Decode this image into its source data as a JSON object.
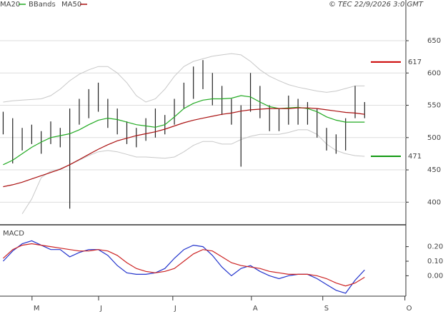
{
  "chart_data": {
    "type": "ohlc",
    "source": "© TEC 22/9/2026 3:0 GMT",
    "x": [
      1,
      4,
      7,
      10,
      13,
      16,
      19,
      22,
      25,
      28,
      31,
      34,
      37,
      40,
      43,
      46,
      49,
      52,
      55,
      58,
      61,
      64,
      67,
      70,
      73,
      76,
      79,
      82,
      85,
      88,
      91,
      94,
      97,
      100,
      103,
      106,
      109,
      112,
      115
    ],
    "high": [
      540,
      530,
      515,
      520,
      510,
      525,
      515,
      545,
      560,
      575,
      585,
      560,
      545,
      525,
      515,
      530,
      545,
      535,
      560,
      585,
      610,
      620,
      600,
      580,
      560,
      550,
      600,
      580,
      550,
      545,
      565,
      560,
      555,
      545,
      515,
      505,
      530,
      580,
      555
    ],
    "low": [
      505,
      460,
      480,
      490,
      475,
      490,
      485,
      390,
      520,
      530,
      540,
      515,
      505,
      490,
      485,
      495,
      500,
      505,
      520,
      545,
      560,
      575,
      550,
      535,
      520,
      455,
      540,
      530,
      510,
      510,
      520,
      520,
      520,
      500,
      480,
      475,
      480,
      530,
      530
    ],
    "bar_color": "#222222",
    "series": [
      {
        "name": "MA20",
        "color": "#22aa22",
        "values": [
          458,
          465,
          475,
          485,
          493,
          500,
          503,
          506,
          512,
          520,
          527,
          530,
          528,
          524,
          520,
          518,
          516,
          520,
          532,
          545,
          553,
          558,
          560,
          560,
          561,
          565,
          563,
          555,
          548,
          545,
          546,
          547,
          545,
          540,
          532,
          527,
          524,
          524,
          524
        ]
      },
      {
        "name": "MA50",
        "color": "#aa1111",
        "values": [
          424,
          427,
          431,
          436,
          441,
          446,
          451,
          458,
          466,
          474,
          482,
          489,
          495,
          499,
          503,
          506,
          509,
          513,
          518,
          523,
          527,
          530,
          533,
          536,
          538,
          541,
          543,
          544,
          545,
          545,
          545,
          546,
          546,
          545,
          543,
          541,
          539,
          538,
          536
        ]
      }
    ],
    "bbands": {
      "name": "BBands",
      "color": "#c8c8c8",
      "upper": [
        555,
        557,
        558,
        559,
        560,
        565,
        575,
        588,
        598,
        605,
        610,
        610,
        600,
        585,
        565,
        555,
        560,
        575,
        595,
        610,
        618,
        622,
        626,
        628,
        630,
        628,
        618,
        605,
        595,
        588,
        582,
        578,
        575,
        572,
        570,
        572,
        576,
        580,
        580
      ],
      "lower": [
        null,
        null,
        382,
        405,
        438,
        448,
        452,
        458,
        465,
        472,
        478,
        480,
        478,
        474,
        470,
        470,
        469,
        468,
        470,
        478,
        488,
        494,
        494,
        490,
        490,
        497,
        502,
        505,
        505,
        505,
        508,
        512,
        512,
        505,
        490,
        480,
        475,
        472,
        471
      ]
    },
    "levels": [
      {
        "value": 617,
        "color": "#cc0000"
      },
      {
        "value": 471,
        "color": "#119911"
      }
    ],
    "xlim": [
      0,
      128
    ],
    "xticks": [
      {
        "value": 10.1,
        "label": "M"
      },
      {
        "value": 31.1,
        "label": "J"
      },
      {
        "value": 54.5,
        "label": "J"
      },
      {
        "value": 79.3,
        "label": "A"
      },
      {
        "value": 101.8,
        "label": "S"
      },
      {
        "value": 127.7,
        "label": "O"
      }
    ],
    "ylim": [
      365,
      713
    ],
    "yticks": [
      400,
      450,
      500,
      550,
      600,
      650
    ],
    "grid": true,
    "macd": {
      "title": "MACD",
      "ylim": [
        -0.14,
        0.35
      ],
      "yticks": [
        {
          "value": 0.2,
          "label": "0.20"
        },
        {
          "value": 0.1,
          "label": "0.10"
        },
        {
          "value": 0,
          "label": "0.00"
        }
      ],
      "series": [
        {
          "color": "#2233cc",
          "values": [
            0.1,
            0.17,
            0.22,
            0.24,
            0.21,
            0.18,
            0.18,
            0.13,
            0.16,
            0.18,
            0.18,
            0.14,
            0.07,
            0.02,
            0.01,
            0.01,
            0.02,
            0.05,
            0.12,
            0.18,
            0.21,
            0.2,
            0.14,
            0.06,
            0.0,
            0.05,
            0.07,
            0.03,
            0.0,
            -0.02,
            0.0,
            0.01,
            0.01,
            -0.02,
            -0.06,
            -0.1,
            -0.12,
            -0.03,
            0.04
          ]
        },
        {
          "color": "#cc2222",
          "values": [
            0.12,
            0.18,
            0.21,
            0.22,
            0.21,
            0.2,
            0.19,
            0.18,
            0.17,
            0.17,
            0.18,
            0.17,
            0.14,
            0.09,
            0.05,
            0.03,
            0.02,
            0.03,
            0.05,
            0.1,
            0.15,
            0.18,
            0.17,
            0.13,
            0.09,
            0.07,
            0.06,
            0.05,
            0.03,
            0.02,
            0.01,
            0.01,
            0.01,
            0.0,
            -0.02,
            -0.05,
            -0.07,
            -0.05,
            -0.01
          ]
        }
      ]
    }
  }
}
